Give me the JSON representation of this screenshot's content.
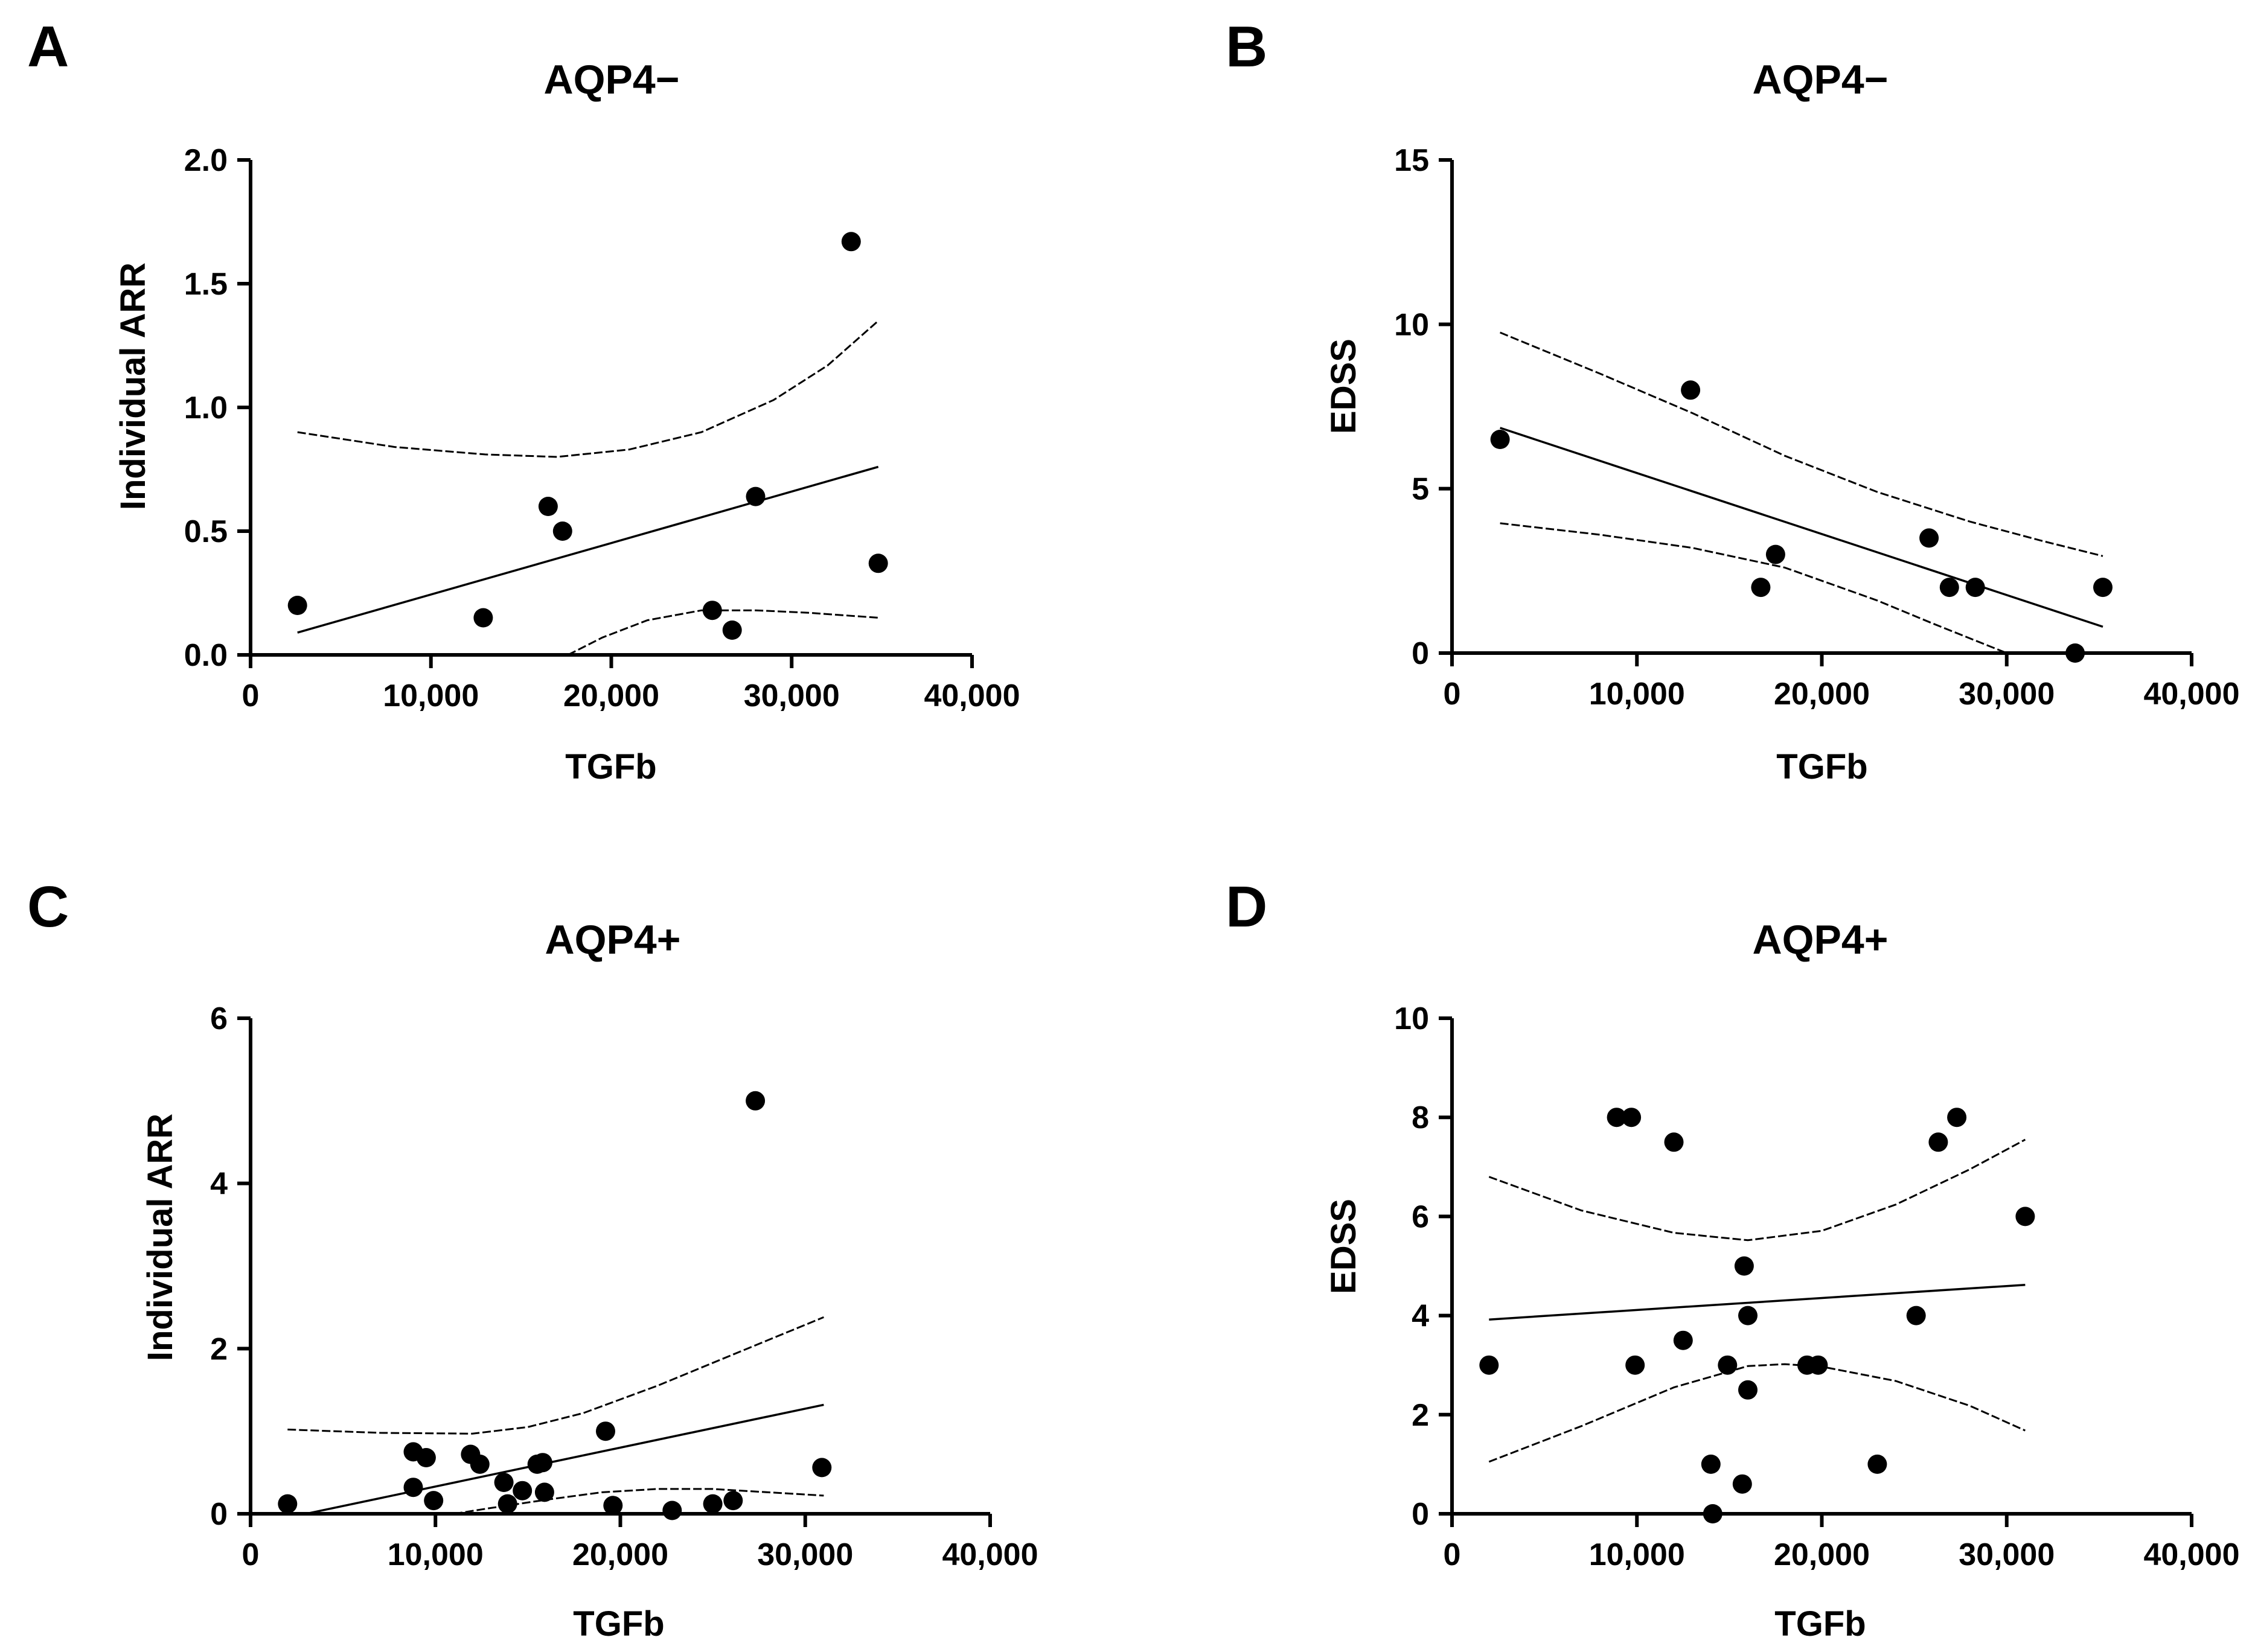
{
  "chart_data": [
    {
      "panel": "A",
      "type": "scatter",
      "title": "AQP4−",
      "xlabel": "TGFb",
      "ylabel": "Individual ARR",
      "xlim": [
        0,
        40000
      ],
      "ylim": [
        0,
        2.0
      ],
      "xticks": [
        0,
        10000,
        20000,
        30000,
        40000
      ],
      "xtick_labels": [
        "0",
        "10,000",
        "20,000",
        "30,000",
        "40,000"
      ],
      "yticks": [
        0,
        0.5,
        1.0,
        1.5,
        2.0
      ],
      "ytick_labels": [
        "0.0",
        "0.5",
        "1.0",
        "1.5",
        "2.0"
      ],
      "points": [
        [
          2600,
          0.2
        ],
        [
          12900,
          0.15
        ],
        [
          16500,
          0.6
        ],
        [
          17300,
          0.5
        ],
        [
          25600,
          0.18
        ],
        [
          26700,
          0.1
        ],
        [
          28000,
          0.64
        ],
        [
          33300,
          1.67
        ],
        [
          34800,
          0.37
        ]
      ],
      "fit": {
        "x": [
          2600,
          34800
        ],
        "y": [
          0.09,
          0.76
        ]
      },
      "ci_upper": {
        "x": [
          2600,
          8000,
          13000,
          17000,
          21000,
          25000,
          29000,
          32000,
          34800
        ],
        "y": [
          0.9,
          0.84,
          0.81,
          0.8,
          0.83,
          0.9,
          1.03,
          1.17,
          1.35
        ]
      },
      "ci_lower": {
        "x": [
          17600,
          19500,
          22000,
          25000,
          28000,
          31000,
          34800
        ],
        "y": [
          0.0,
          0.07,
          0.14,
          0.18,
          0.18,
          0.17,
          0.15
        ]
      }
    },
    {
      "panel": "B",
      "type": "scatter",
      "title": "AQP4−",
      "xlabel": "TGFb",
      "ylabel": "EDSS",
      "xlim": [
        0,
        40000
      ],
      "ylim": [
        0,
        15
      ],
      "xticks": [
        0,
        10000,
        20000,
        30000,
        40000
      ],
      "xtick_labels": [
        "0",
        "10,000",
        "20,000",
        "30,000",
        "40,000"
      ],
      "yticks": [
        0,
        5,
        10,
        15
      ],
      "ytick_labels": [
        "0",
        "5",
        "10",
        "15"
      ],
      "points": [
        [
          2600,
          6.5
        ],
        [
          12900,
          8.0
        ],
        [
          16700,
          2.0
        ],
        [
          17500,
          3.0
        ],
        [
          25800,
          3.5
        ],
        [
          26900,
          2.0
        ],
        [
          28300,
          2.0
        ],
        [
          33700,
          0.0
        ],
        [
          35200,
          2.0
        ]
      ],
      "fit": {
        "x": [
          2600,
          35200
        ],
        "y": [
          6.85,
          0.8
        ]
      },
      "ci_upper": {
        "x": [
          2600,
          8000,
          13000,
          18000,
          23000,
          28000,
          32000,
          35200
        ],
        "y": [
          9.75,
          8.5,
          7.3,
          6.0,
          4.9,
          4.0,
          3.4,
          2.95
        ]
      },
      "ci_lower": {
        "x": [
          2600,
          8000,
          13000,
          18000,
          23000,
          26000,
          28000,
          30000
        ],
        "y": [
          3.95,
          3.6,
          3.2,
          2.6,
          1.6,
          0.9,
          0.45,
          0.0
        ]
      }
    },
    {
      "panel": "C",
      "type": "scatter",
      "title": "AQP4+",
      "xlabel": "TGFb",
      "ylabel": "Individual ARR",
      "xlim": [
        0,
        40000
      ],
      "ylim": [
        0,
        6
      ],
      "xticks": [
        0,
        10000,
        20000,
        30000,
        40000
      ],
      "xtick_labels": [
        "0",
        "10,000",
        "20,000",
        "30,000",
        "40,000"
      ],
      "yticks": [
        0,
        2,
        4,
        6
      ],
      "ytick_labels": [
        "0",
        "2",
        "4",
        "6"
      ],
      "points": [
        [
          2000,
          0.12
        ],
        [
          8800,
          0.75
        ],
        [
          8800,
          0.32
        ],
        [
          9500,
          0.68
        ],
        [
          9900,
          0.16
        ],
        [
          11900,
          0.72
        ],
        [
          12400,
          0.6
        ],
        [
          13700,
          0.38
        ],
        [
          13900,
          0.12
        ],
        [
          14700,
          0.28
        ],
        [
          15500,
          0.6
        ],
        [
          15800,
          0.62
        ],
        [
          15900,
          0.26
        ],
        [
          19200,
          1.0
        ],
        [
          19600,
          0.1
        ],
        [
          22800,
          0.04
        ],
        [
          25000,
          0.12
        ],
        [
          26100,
          0.16
        ],
        [
          27300,
          5.0
        ],
        [
          30900,
          0.56
        ]
      ],
      "fit": {
        "x": [
          3000,
          31000
        ],
        "y": [
          0.0,
          1.32
        ]
      },
      "ci_upper": {
        "x": [
          2000,
          7000,
          12000,
          15000,
          18000,
          22000,
          26000,
          31000
        ],
        "y": [
          1.02,
          0.98,
          0.97,
          1.05,
          1.22,
          1.55,
          1.92,
          2.38
        ]
      },
      "ci_lower": {
        "x": [
          11000,
          13000,
          16000,
          19000,
          22000,
          25000,
          28000,
          31000
        ],
        "y": [
          0.0,
          0.07,
          0.17,
          0.26,
          0.3,
          0.3,
          0.26,
          0.22
        ]
      }
    },
    {
      "panel": "D",
      "type": "scatter",
      "title": "AQP4+",
      "xlabel": "TGFb",
      "ylabel": "EDSS",
      "xlim": [
        0,
        40000
      ],
      "ylim": [
        0,
        10
      ],
      "xticks": [
        0,
        10000,
        20000,
        30000,
        40000
      ],
      "xtick_labels": [
        "0",
        "10,000",
        "20,000",
        "30,000",
        "40,000"
      ],
      "yticks": [
        0,
        2,
        4,
        6,
        8,
        10
      ],
      "ytick_labels": [
        "0",
        "2",
        "4",
        "6",
        "8",
        "10"
      ],
      "points": [
        [
          2000,
          3.0
        ],
        [
          8900,
          8.0
        ],
        [
          9700,
          8.0
        ],
        [
          9900,
          3.0
        ],
        [
          12000,
          7.5
        ],
        [
          12500,
          3.5
        ],
        [
          14000,
          1.0
        ],
        [
          14100,
          0.0
        ],
        [
          14900,
          3.0
        ],
        [
          15700,
          0.6
        ],
        [
          15800,
          5.0
        ],
        [
          16000,
          4.0
        ],
        [
          16000,
          2.5
        ],
        [
          19200,
          3.0
        ],
        [
          19800,
          3.0
        ],
        [
          23000,
          1.0
        ],
        [
          25100,
          4.0
        ],
        [
          26300,
          7.5
        ],
        [
          27300,
          8.0
        ],
        [
          31000,
          6.0
        ]
      ],
      "fit": {
        "x": [
          2000,
          31000
        ],
        "y": [
          3.92,
          4.62
        ]
      },
      "ci_upper": {
        "x": [
          2000,
          7000,
          12000,
          16000,
          20000,
          24000,
          28000,
          31000
        ],
        "y": [
          6.8,
          6.12,
          5.67,
          5.52,
          5.71,
          6.24,
          6.95,
          7.55
        ]
      },
      "ci_lower": {
        "x": [
          2000,
          7000,
          12000,
          16000,
          18000,
          20000,
          24000,
          28000,
          31000
        ],
        "y": [
          1.05,
          1.77,
          2.55,
          2.98,
          3.02,
          2.97,
          2.68,
          2.18,
          1.68
        ]
      }
    }
  ]
}
